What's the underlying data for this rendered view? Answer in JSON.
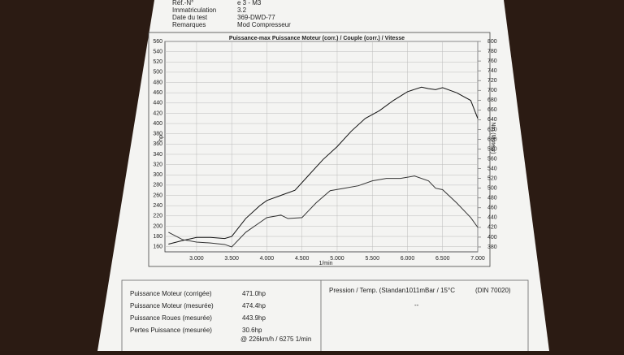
{
  "header": {
    "rows": [
      [
        "Réf.-N°",
        "e 3 - M3"
      ],
      [
        "Immatriculation",
        "3.2"
      ],
      [
        "Date du test",
        "369-DWD-77"
      ],
      [
        "Remarques",
        "Mod Compresseur"
      ]
    ]
  },
  "chart_data": {
    "type": "line",
    "title": "Puissance-max Puissance Moteur (corr.) / Couple (corr.) / Vitesse",
    "x_label": "1/min",
    "y_label": "hp",
    "y2_label": "Nm (Moteur)",
    "xlim": [
      2550,
      7000
    ],
    "xticks": [
      {
        "value": 3000,
        "label": "3.000"
      },
      {
        "value": 3500,
        "label": "3.500"
      },
      {
        "value": 4000,
        "label": "4.000"
      },
      {
        "value": 4500,
        "label": "4.500"
      },
      {
        "value": 5000,
        "label": "5.000"
      },
      {
        "value": 5500,
        "label": "5.500"
      },
      {
        "value": 6000,
        "label": "6.000"
      },
      {
        "value": 6500,
        "label": "6.500"
      },
      {
        "value": 7000,
        "label": "7.000"
      }
    ],
    "ylim": [
      150,
      560
    ],
    "yticks": [
      160,
      180,
      200,
      220,
      240,
      260,
      280,
      300,
      320,
      340,
      360,
      380,
      400,
      420,
      440,
      460,
      480,
      500,
      520,
      540,
      560
    ],
    "y2lim": [
      370,
      800
    ],
    "y2ticks": [
      380,
      400,
      420,
      440,
      460,
      480,
      500,
      520,
      540,
      560,
      580,
      600,
      620,
      640,
      660,
      680,
      700,
      720,
      740,
      760,
      780,
      800
    ],
    "grid": true,
    "series": [
      {
        "color": "#111111",
        "axis": "y",
        "x": [
          2600,
          2800,
          3000,
          3200,
          3400,
          3500,
          3700,
          3900,
          4000,
          4200,
          4400,
          4600,
          4800,
          5000,
          5200,
          5400,
          5600,
          5800,
          6000,
          6200,
          6300,
          6400,
          6500,
          6700,
          6900,
          7000
        ],
        "values": [
          165,
          172,
          178,
          178,
          176,
          180,
          215,
          240,
          250,
          260,
          270,
          300,
          330,
          355,
          385,
          410,
          425,
          445,
          462,
          471,
          468,
          466,
          470,
          460,
          445,
          410
        ]
      },
      {
        "color": "#333333",
        "axis": "y2",
        "x": [
          2600,
          2800,
          3000,
          3200,
          3400,
          3500,
          3700,
          3900,
          4000,
          4200,
          4300,
          4500,
          4700,
          4900,
          5100,
          5300,
          5500,
          5700,
          5900,
          6100,
          6300,
          6400,
          6500,
          6700,
          6900,
          7000
        ],
        "values": [
          410,
          395,
          390,
          388,
          385,
          380,
          410,
          430,
          440,
          445,
          438,
          440,
          470,
          495,
          500,
          505,
          515,
          520,
          520,
          525,
          515,
          500,
          497,
          470,
          440,
          420
        ]
      }
    ]
  },
  "results": {
    "rows": [
      [
        "Puissance Moteur (corrigée)",
        "471.0hp"
      ],
      [
        "Puissance Moteur (mesurée)",
        "474.4hp"
      ],
      [
        "Puissance Roues (mesurée)",
        "443.9hp"
      ],
      [
        "Pertes Puissance (mesurée)",
        "30.6hp"
      ]
    ],
    "speed": "@ 226km/h / 6275 1/min",
    "conditions": "Pression / Temp. (Standan1011mBar / 15°C",
    "norm": "(DIN 70020)",
    "conditions_value": "--"
  }
}
